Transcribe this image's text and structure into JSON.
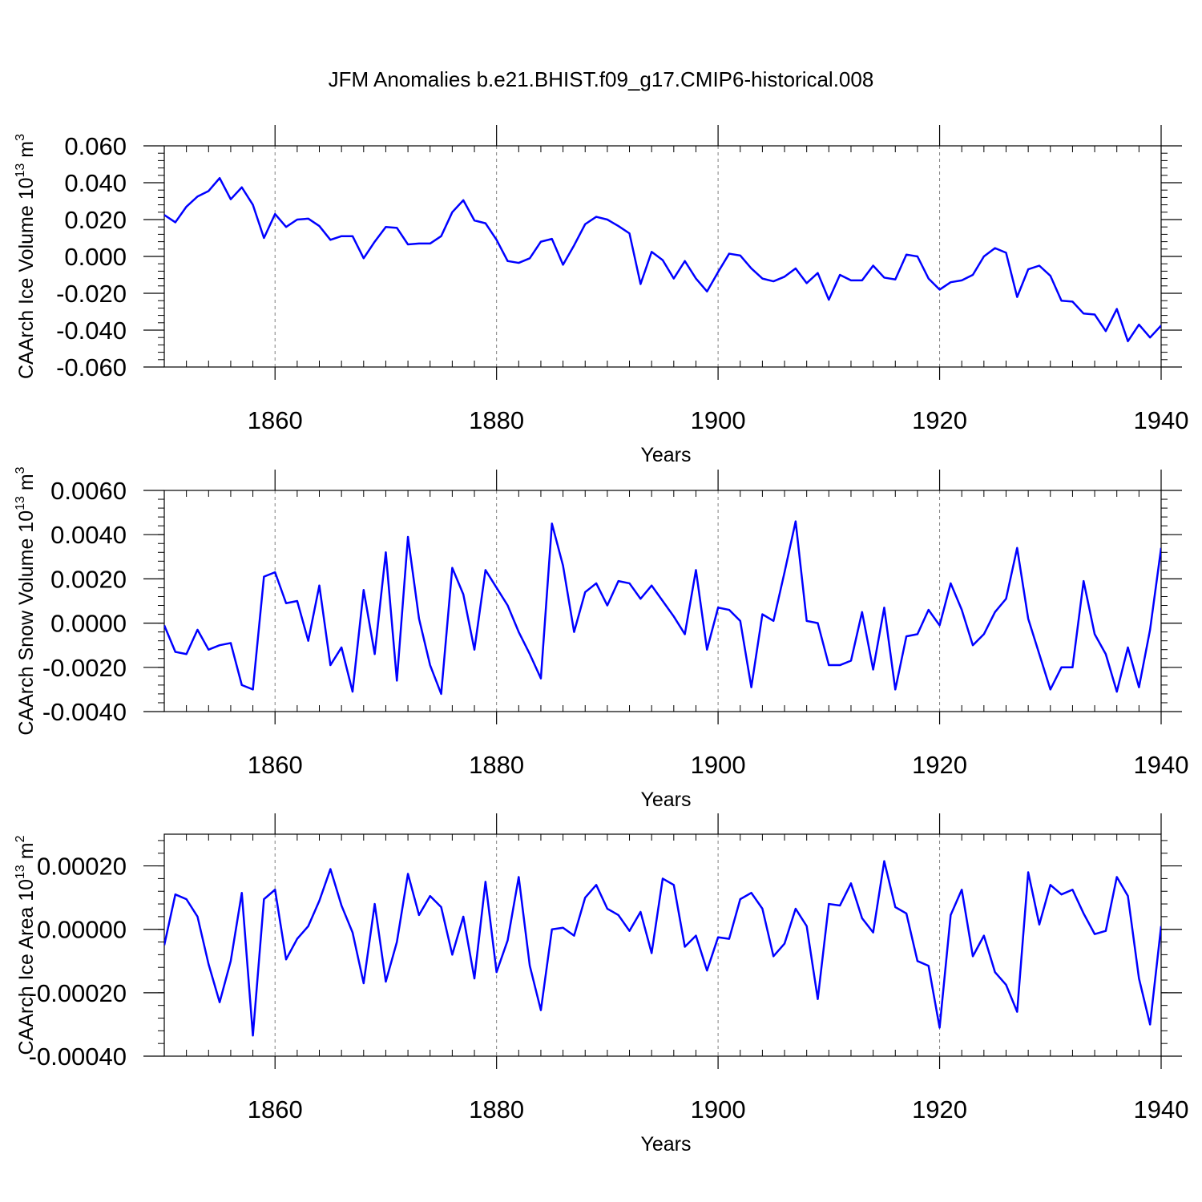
{
  "title": "JFM Anomalies b.e21.BHIST.f09_g17.CMIP6-historical.008",
  "colors": {
    "line": "#0000ff",
    "axes": "#000000",
    "grid": "#7f7f7f"
  },
  "chart_data": [
    {
      "type": "line",
      "title": "",
      "xlabel": "Years",
      "ylabel": "CAArch Ice Volume 10",
      "ylabel_exp": "13",
      "ylabel_unit": " m",
      "ylabel_unit_exp": "3",
      "xlim": [
        1850,
        1940
      ],
      "ylim": [
        -0.06,
        0.06
      ],
      "xticks": [
        1860,
        1880,
        1900,
        1920,
        1940
      ],
      "yticks": [
        0.06,
        0.04,
        0.02,
        0.0,
        -0.02,
        -0.04,
        -0.06
      ],
      "ytick_labels": [
        "0.060",
        "0.040",
        "0.020",
        "0.000",
        "-0.020",
        "-0.040",
        "-0.060"
      ],
      "vgrid": [
        1860,
        1880,
        1900,
        1920
      ],
      "x_start": 1850,
      "values": [
        0.0225,
        0.0185,
        0.027,
        0.0325,
        0.0355,
        0.0425,
        0.031,
        0.0375,
        0.028,
        0.01,
        0.023,
        0.016,
        0.02,
        0.0205,
        0.0165,
        0.009,
        0.011,
        0.011,
        -0.001,
        0.008,
        0.016,
        0.0155,
        0.0065,
        0.007,
        0.007,
        0.011,
        0.024,
        0.0305,
        0.0195,
        0.018,
        0.009,
        -0.0025,
        -0.0035,
        -0.001,
        0.008,
        0.0095,
        -0.0045,
        0.006,
        0.0175,
        0.0215,
        0.02,
        0.0165,
        0.0125,
        -0.015,
        0.0025,
        -0.002,
        -0.012,
        -0.0025,
        -0.012,
        -0.019,
        -0.0085,
        0.0015,
        0.0005,
        -0.0065,
        -0.012,
        -0.0135,
        -0.011,
        -0.0065,
        -0.0145,
        -0.009,
        -0.0235,
        -0.01,
        -0.013,
        -0.013,
        -0.005,
        -0.0115,
        -0.0125,
        0.001,
        0.0,
        -0.012,
        -0.018,
        -0.014,
        -0.013,
        -0.01,
        0.0,
        0.0045,
        0.002,
        -0.022,
        -0.007,
        -0.005,
        -0.0105,
        -0.024,
        -0.0245,
        -0.031,
        -0.0315,
        -0.0405,
        -0.0285,
        -0.046,
        -0.037,
        -0.044,
        -0.0375
      ]
    },
    {
      "type": "line",
      "title": "",
      "xlabel": "Years",
      "ylabel": "CAArch Snow Volume 10",
      "ylabel_exp": "13",
      "ylabel_unit": " m",
      "ylabel_unit_exp": "3",
      "xlim": [
        1850,
        1940
      ],
      "ylim": [
        -0.004,
        0.006
      ],
      "xticks": [
        1860,
        1880,
        1900,
        1920,
        1940
      ],
      "yticks": [
        0.006,
        0.004,
        0.002,
        0.0,
        -0.002,
        -0.004
      ],
      "ytick_labels": [
        "0.0060",
        "0.0040",
        "0.0020",
        "0.0000",
        "-0.0020",
        "-0.0040"
      ],
      "vgrid": [
        1860,
        1880,
        1900,
        1920
      ],
      "x_start": 1850,
      "values": [
        -0.0001,
        -0.0013,
        -0.0014,
        -0.0003,
        -0.0012,
        -0.001,
        -0.0009,
        -0.0028,
        -0.003,
        0.0021,
        0.0023,
        0.0009,
        0.001,
        -0.0008,
        0.0017,
        -0.0019,
        -0.0011,
        -0.0031,
        0.0015,
        -0.0014,
        0.0032,
        -0.0026,
        0.0039,
        0.0002,
        -0.0019,
        -0.0032,
        0.0025,
        0.0013,
        -0.0012,
        0.0024,
        0.0016,
        0.0008,
        -0.0004,
        -0.0014,
        -0.0025,
        0.0045,
        0.0026,
        -0.0004,
        0.0014,
        0.0018,
        0.0008,
        0.0019,
        0.0018,
        0.0011,
        0.0017,
        0.001,
        0.0003,
        -0.0005,
        0.0024,
        -0.0012,
        0.0007,
        0.0006,
        0.0001,
        -0.0029,
        0.0004,
        0.0001,
        0.0023,
        0.0046,
        0.0001,
        0.0,
        -0.0019,
        -0.0019,
        -0.0017,
        0.0005,
        -0.0021,
        0.0007,
        -0.003,
        -0.0006,
        -0.0005,
        0.0006,
        -0.0001,
        0.0018,
        0.0006,
        -0.001,
        -0.0005,
        0.0005,
        0.0011,
        0.0034,
        0.0002,
        -0.0014,
        -0.003,
        -0.002,
        -0.002,
        0.0019,
        -0.0005,
        -0.0014,
        -0.0031,
        -0.0011,
        -0.0029,
        -0.0003,
        0.0034
      ]
    },
    {
      "type": "line",
      "title": "",
      "xlabel": "Years",
      "ylabel": "CAArch Ice Area 10",
      "ylabel_exp": "13",
      "ylabel_unit": " m",
      "ylabel_unit_exp": "2",
      "xlim": [
        1850,
        1940
      ],
      "ylim": [
        -0.0004,
        0.0003
      ],
      "xticks": [
        1860,
        1880,
        1900,
        1920,
        1940
      ],
      "yticks": [
        0.0002,
        0.0,
        -0.0002,
        -0.0004
      ],
      "ytick_labels": [
        "0.00020",
        "0.00000",
        "-0.00020",
        "-0.00040"
      ],
      "vgrid": [
        1860,
        1880,
        1900,
        1920
      ],
      "x_start": 1850,
      "values": [
        -5e-05,
        0.00011,
        9.5e-05,
        4e-05,
        -0.00011,
        -0.00023,
        -0.0001,
        0.000115,
        -0.000335,
        9.5e-05,
        0.000125,
        -9.5e-05,
        -3e-05,
        1e-05,
        9e-05,
        0.00019,
        7.5e-05,
        -1e-05,
        -0.00017,
        8e-05,
        -0.000165,
        -4e-05,
        0.000175,
        4.5e-05,
        0.000105,
        7e-05,
        -8e-05,
        4e-05,
        -0.000155,
        0.00015,
        -0.000135,
        -3.5e-05,
        0.000165,
        -0.000115,
        -0.000255,
        0.0,
        5e-06,
        -2e-05,
        0.0001,
        0.00014,
        6.5e-05,
        4.5e-05,
        -5e-06,
        5.5e-05,
        -7.5e-05,
        0.00016,
        0.00014,
        -5.5e-05,
        -2e-05,
        -0.00013,
        -2.5e-05,
        -3e-05,
        9.5e-05,
        0.000115,
        6.5e-05,
        -8.5e-05,
        -4.5e-05,
        6.5e-05,
        1e-05,
        -0.00022,
        8e-05,
        7.5e-05,
        0.000145,
        3.5e-05,
        -1e-05,
        0.000215,
        7e-05,
        5e-05,
        -0.0001,
        -0.000115,
        -0.00031,
        4.5e-05,
        0.000125,
        -8.5e-05,
        -2e-05,
        -0.000135,
        -0.000175,
        -0.00026,
        0.00018,
        1.5e-05,
        0.00014,
        0.00011,
        0.000125,
        5e-05,
        -1.5e-05,
        -5e-06,
        0.000165,
        0.000105,
        -0.000155,
        -0.0003,
        1e-05
      ]
    }
  ]
}
